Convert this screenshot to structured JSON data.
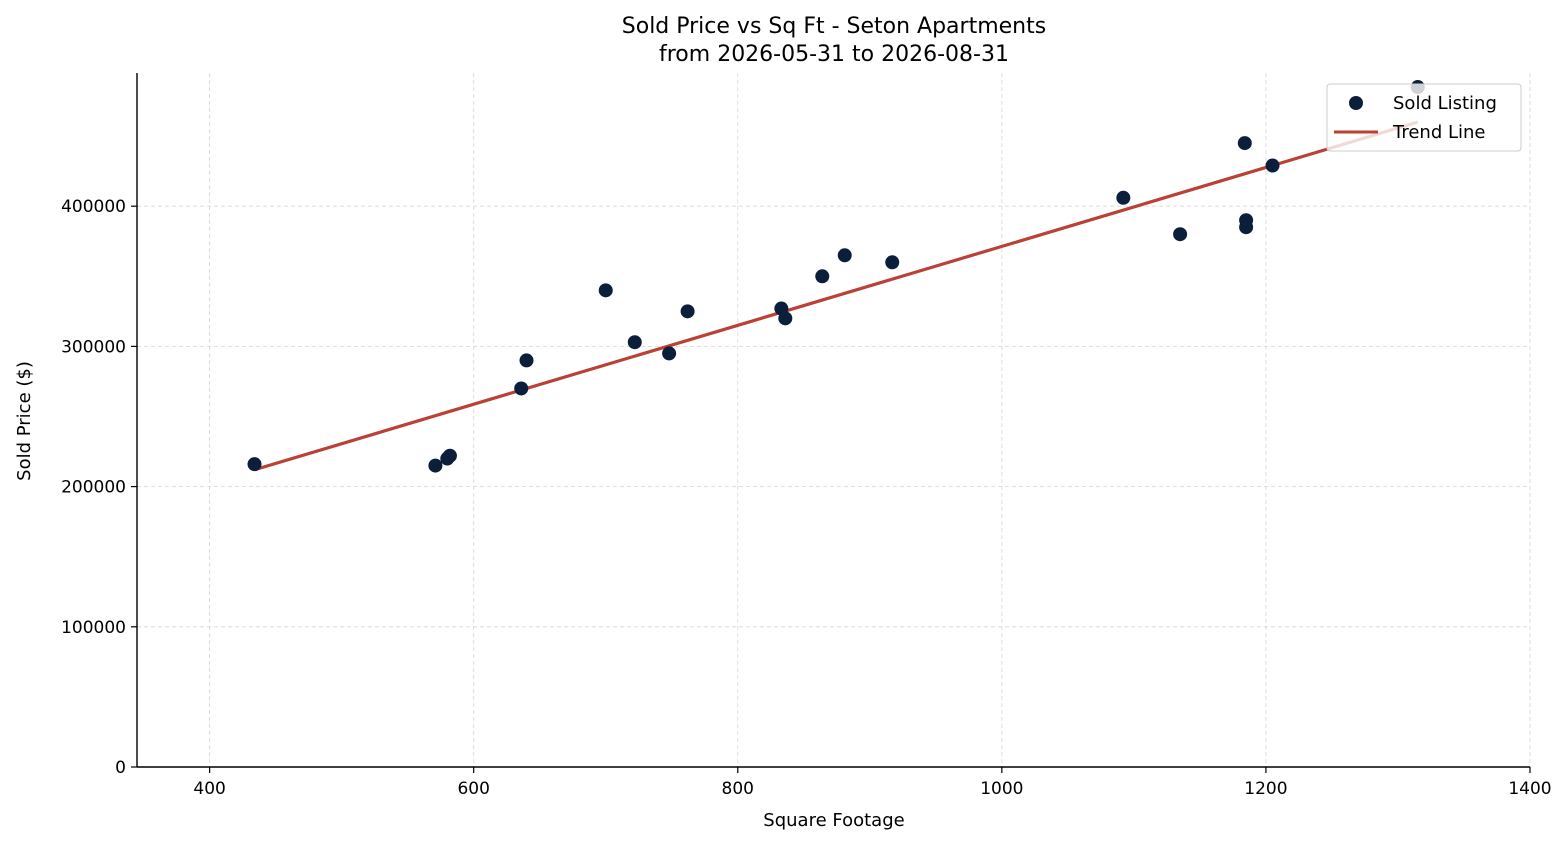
{
  "chart_data": {
    "type": "scatter",
    "title": "Sold Price vs Sq Ft - Seton Apartments",
    "subtitle": "from 2026-05-31 to 2026-08-31",
    "xlabel": "Square Footage",
    "ylabel": "Sold Price ($)",
    "xlim": [
      345,
      1400
    ],
    "ylim": [
      0,
      495000
    ],
    "xticks": [
      400,
      600,
      800,
      1000,
      1200,
      1400
    ],
    "yticks": [
      0,
      100000,
      200000,
      300000,
      400000
    ],
    "xtick_labels": [
      "400",
      "600",
      "800",
      "1000",
      "1200",
      "1400"
    ],
    "ytick_labels": [
      "0",
      "100000",
      "200000",
      "300000",
      "400000"
    ],
    "grid": true,
    "legend_position": "top-right",
    "series": [
      {
        "name": "Sold Listing",
        "kind": "scatter",
        "color": "#0b1f3a",
        "points": [
          {
            "x": 434,
            "y": 216000
          },
          {
            "x": 571,
            "y": 215000
          },
          {
            "x": 580,
            "y": 220000
          },
          {
            "x": 582,
            "y": 222000
          },
          {
            "x": 636,
            "y": 270000
          },
          {
            "x": 640,
            "y": 290000
          },
          {
            "x": 700,
            "y": 340000
          },
          {
            "x": 722,
            "y": 303000
          },
          {
            "x": 748,
            "y": 295000
          },
          {
            "x": 762,
            "y": 325000
          },
          {
            "x": 833,
            "y": 327000
          },
          {
            "x": 836,
            "y": 320000
          },
          {
            "x": 864,
            "y": 350000
          },
          {
            "x": 881,
            "y": 365000
          },
          {
            "x": 917,
            "y": 360000
          },
          {
            "x": 1092,
            "y": 406000
          },
          {
            "x": 1135,
            "y": 380000
          },
          {
            "x": 1184,
            "y": 445000
          },
          {
            "x": 1185,
            "y": 390000
          },
          {
            "x": 1185,
            "y": 385000
          },
          {
            "x": 1205,
            "y": 429000
          },
          {
            "x": 1315,
            "y": 485000
          }
        ]
      },
      {
        "name": "Trend Line",
        "kind": "line",
        "color": "#b94135",
        "points": [
          {
            "x": 434,
            "y": 212000
          },
          {
            "x": 1315,
            "y": 460000
          }
        ]
      }
    ]
  }
}
